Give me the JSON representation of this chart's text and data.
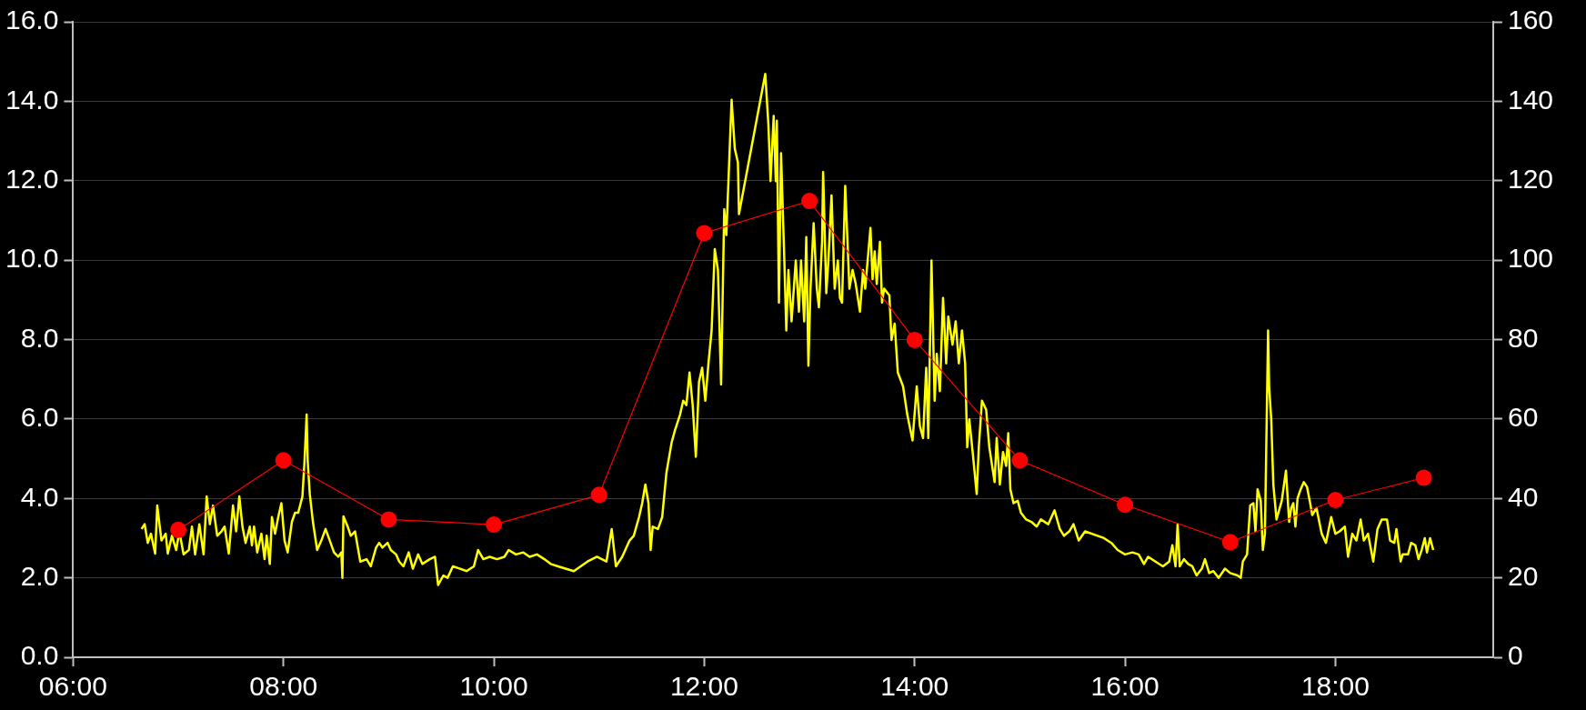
{
  "chart_data": {
    "type": "line",
    "xlim": [
      6,
      19.5
    ],
    "xticks": [
      {
        "value": 6,
        "label": "06:00"
      },
      {
        "value": 8,
        "label": "08:00"
      },
      {
        "value": 10,
        "label": "10:00"
      },
      {
        "value": 12,
        "label": "12:00"
      },
      {
        "value": 14,
        "label": "14:00"
      },
      {
        "value": 16,
        "label": "16:00"
      },
      {
        "value": 18,
        "label": "18:00"
      }
    ],
    "ylim": [
      0,
      16
    ],
    "yticks": [
      {
        "value": 0,
        "label": "0.0"
      },
      {
        "value": 2,
        "label": "2.0"
      },
      {
        "value": 4,
        "label": "4.0"
      },
      {
        "value": 6,
        "label": "6.0"
      },
      {
        "value": 8,
        "label": "8.0"
      },
      {
        "value": 10,
        "label": "10.0"
      },
      {
        "value": 12,
        "label": "12.0"
      },
      {
        "value": 14,
        "label": "14.0"
      },
      {
        "value": 16,
        "label": "16.0"
      }
    ],
    "y2lim": [
      0,
      160
    ],
    "y2ticks": [
      0,
      20,
      40,
      60,
      80,
      100,
      120,
      140,
      160
    ],
    "grid": "y",
    "legend": false,
    "series": [
      {
        "color": "#ffff00",
        "marker": "none",
        "line_style": "solid",
        "x": [
          6.65,
          6.68,
          6.71,
          6.74,
          6.78,
          6.8,
          6.84,
          6.88,
          6.9,
          6.94,
          6.98,
          7.01,
          7.05,
          7.1,
          7.13,
          7.16,
          7.2,
          7.24,
          7.27,
          7.3,
          7.33,
          7.37,
          7.41,
          7.44,
          7.48,
          7.52,
          7.55,
          7.58,
          7.61,
          7.64,
          7.68,
          7.7,
          7.72,
          7.75,
          7.79,
          7.82,
          7.84,
          7.87,
          7.89,
          7.92,
          7.95,
          7.98,
          8.01,
          8.04,
          8.08,
          8.11,
          8.14,
          8.18,
          8.2,
          8.22,
          8.23,
          8.25,
          8.28,
          8.32,
          8.36,
          8.4,
          8.44,
          8.48,
          8.52,
          8.55,
          8.56,
          8.57,
          8.61,
          8.64,
          8.68,
          8.73,
          8.79,
          8.83,
          8.88,
          8.91,
          8.94,
          8.99,
          9.02,
          9.07,
          9.1,
          9.14,
          9.19,
          9.23,
          9.28,
          9.32,
          9.39,
          9.44,
          9.47,
          9.52,
          9.56,
          9.61,
          9.68,
          9.74,
          9.81,
          9.85,
          9.9,
          9.96,
          10.03,
          10.1,
          10.14,
          10.21,
          10.28,
          10.34,
          10.41,
          10.48,
          10.54,
          10.61,
          10.76,
          10.89,
          10.98,
          11.07,
          11.12,
          11.16,
          11.22,
          11.29,
          11.33,
          11.38,
          11.41,
          11.44,
          11.47,
          11.49,
          11.51,
          11.56,
          11.6,
          11.64,
          11.69,
          11.72,
          11.77,
          11.8,
          11.83,
          11.86,
          11.89,
          11.92,
          11.95,
          11.98,
          12.01,
          12.04,
          12.07,
          12.1,
          12.13,
          12.16,
          12.19,
          12.21,
          12.26,
          12.29,
          12.32,
          12.33,
          12.58,
          12.61,
          12.63,
          12.66,
          12.68,
          12.69,
          12.71,
          12.73,
          12.76,
          12.78,
          12.8,
          12.83,
          12.87,
          12.9,
          12.92,
          12.95,
          12.97,
          12.99,
          13.01,
          13.04,
          13.07,
          13.09,
          13.12,
          13.13,
          13.16,
          13.18,
          13.21,
          13.24,
          13.27,
          13.29,
          13.31,
          13.34,
          13.38,
          13.41,
          13.44,
          13.48,
          13.51,
          13.53,
          13.58,
          13.6,
          13.62,
          13.64,
          13.67,
          13.69,
          13.71,
          13.76,
          13.78,
          13.81,
          13.84,
          13.89,
          13.93,
          13.98,
          14.02,
          14.05,
          14.08,
          14.11,
          14.13,
          14.16,
          14.19,
          14.21,
          14.24,
          14.27,
          14.3,
          14.32,
          14.36,
          14.39,
          14.42,
          14.45,
          14.48,
          14.5,
          14.52,
          14.56,
          14.59,
          14.61,
          14.64,
          14.68,
          14.71,
          14.76,
          14.78,
          14.81,
          14.84,
          14.87,
          14.89,
          14.91,
          14.94,
          14.98,
          15.01,
          15.06,
          15.11,
          15.16,
          15.2,
          15.27,
          15.33,
          15.38,
          15.42,
          15.47,
          15.51,
          15.56,
          15.62,
          15.8,
          15.87,
          15.93,
          16.0,
          16.07,
          16.13,
          16.18,
          16.22,
          16.29,
          16.36,
          16.42,
          16.45,
          16.48,
          16.5,
          16.52,
          16.56,
          16.6,
          16.64,
          16.68,
          16.73,
          16.76,
          16.8,
          16.84,
          16.89,
          16.95,
          17.0,
          17.07,
          17.1,
          17.12,
          17.16,
          17.19,
          17.22,
          17.24,
          17.26,
          17.29,
          17.31,
          17.33,
          17.36,
          17.37,
          17.39,
          17.41,
          17.44,
          17.49,
          17.53,
          17.56,
          17.58,
          17.6,
          17.62,
          17.64,
          17.67,
          17.7,
          17.73,
          17.76,
          17.78,
          17.82,
          17.87,
          17.91,
          17.96,
          18.0,
          18.04,
          18.09,
          18.12,
          18.16,
          18.2,
          18.24,
          18.27,
          18.31,
          18.36,
          18.4,
          18.44,
          18.49,
          18.52,
          18.56,
          18.58,
          18.62,
          18.64,
          18.69,
          18.72,
          18.76,
          18.79,
          18.82,
          18.85,
          18.87,
          18.9,
          18.93
        ],
        "values": [
          3.23,
          3.35,
          2.88,
          3.11,
          2.61,
          3.82,
          2.94,
          3.11,
          2.61,
          3.06,
          2.7,
          3.17,
          2.59,
          2.7,
          3.29,
          2.59,
          3.35,
          2.59,
          4.05,
          3.35,
          3.82,
          3.06,
          3.17,
          3.29,
          2.61,
          3.82,
          3.17,
          4.05,
          3.29,
          2.88,
          3.29,
          2.82,
          3.29,
          2.64,
          3.11,
          2.47,
          3.06,
          2.35,
          3.53,
          3.11,
          3.53,
          3.88,
          2.94,
          2.64,
          3.41,
          3.64,
          3.64,
          4.05,
          4.94,
          6.11,
          4.94,
          4.11,
          3.41,
          2.7,
          2.94,
          3.23,
          2.94,
          2.64,
          2.53,
          2.64,
          2.0,
          3.55,
          3.29,
          3.06,
          3.17,
          2.41,
          2.47,
          2.29,
          2.76,
          2.88,
          2.76,
          2.88,
          2.7,
          2.59,
          2.41,
          2.29,
          2.64,
          2.23,
          2.59,
          2.35,
          2.47,
          2.53,
          1.82,
          2.06,
          2.0,
          2.29,
          2.23,
          2.17,
          2.29,
          2.7,
          2.47,
          2.53,
          2.47,
          2.53,
          2.7,
          2.59,
          2.64,
          2.53,
          2.59,
          2.47,
          2.35,
          2.29,
          2.17,
          2.41,
          2.53,
          2.41,
          3.23,
          2.29,
          2.53,
          2.94,
          3.06,
          3.53,
          3.88,
          4.35,
          3.88,
          2.7,
          3.29,
          3.23,
          3.53,
          4.64,
          5.41,
          5.7,
          6.11,
          6.46,
          6.35,
          7.17,
          6.35,
          5.05,
          6.93,
          7.29,
          6.46,
          7.4,
          8.23,
          10.28,
          9.75,
          6.87,
          11.28,
          10.63,
          14.04,
          12.81,
          12.46,
          11.16,
          14.69,
          13.4,
          11.99,
          13.63,
          11.99,
          13.51,
          8.93,
          12.69,
          10.11,
          8.23,
          9.75,
          8.46,
          9.99,
          8.7,
          9.99,
          8.46,
          10.58,
          7.34,
          9.28,
          10.93,
          9.28,
          8.81,
          10.46,
          12.22,
          9.17,
          9.99,
          11.63,
          9.28,
          9.99,
          9.05,
          8.93,
          11.87,
          9.28,
          9.75,
          9.4,
          8.7,
          9.75,
          9.28,
          10.81,
          9.52,
          10.22,
          9.4,
          10.46,
          8.93,
          9.28,
          9.11,
          7.99,
          8.4,
          7.17,
          6.82,
          6.11,
          5.46,
          6.82,
          5.82,
          5.52,
          7.29,
          5.52,
          9.99,
          6.46,
          7.64,
          6.7,
          9.05,
          7.4,
          8.58,
          7.87,
          8.46,
          7.4,
          8.23,
          7.4,
          5.29,
          5.99,
          4.94,
          4.11,
          5.29,
          6.46,
          6.23,
          5.29,
          4.41,
          5.52,
          4.35,
          5.17,
          4.82,
          5.64,
          4.23,
          3.88,
          3.94,
          3.64,
          3.47,
          3.41,
          3.29,
          3.47,
          3.35,
          3.7,
          3.23,
          3.06,
          3.17,
          3.35,
          2.94,
          3.17,
          3.0,
          2.88,
          2.7,
          2.59,
          2.64,
          2.59,
          2.35,
          2.53,
          2.41,
          2.29,
          2.41,
          2.82,
          2.29,
          3.35,
          2.29,
          2.47,
          2.35,
          2.29,
          2.06,
          2.23,
          2.47,
          2.12,
          2.17,
          2.0,
          2.23,
          2.12,
          2.06,
          2.0,
          2.41,
          2.59,
          3.82,
          3.88,
          3.17,
          4.23,
          3.94,
          2.7,
          3.11,
          8.23,
          6.82,
          5.99,
          4.35,
          3.47,
          3.94,
          4.7,
          3.41,
          3.76,
          3.88,
          3.29,
          4.0,
          4.23,
          4.41,
          4.29,
          3.88,
          3.58,
          3.76,
          3.11,
          2.88,
          3.53,
          3.11,
          3.17,
          3.29,
          2.53,
          3.11,
          2.94,
          3.47,
          2.94,
          3.11,
          2.41,
          3.23,
          3.47,
          3.47,
          2.94,
          2.88,
          3.23,
          2.41,
          2.59,
          2.59,
          2.88,
          2.82,
          2.47,
          2.7,
          3.0,
          2.64,
          3.0,
          2.7
        ]
      },
      {
        "axis": "y2",
        "color": "#ff0000",
        "marker": "circle",
        "line_style": "solid",
        "x": [
          7,
          8,
          9,
          10,
          11,
          12,
          13,
          14,
          15,
          16,
          17,
          18,
          18.84
        ],
        "values": [
          32.1,
          49.6,
          34.7,
          33.4,
          40.9,
          106.8,
          114.9,
          79.9,
          49.6,
          38.4,
          29.0,
          39.6,
          45.2
        ]
      }
    ]
  }
}
